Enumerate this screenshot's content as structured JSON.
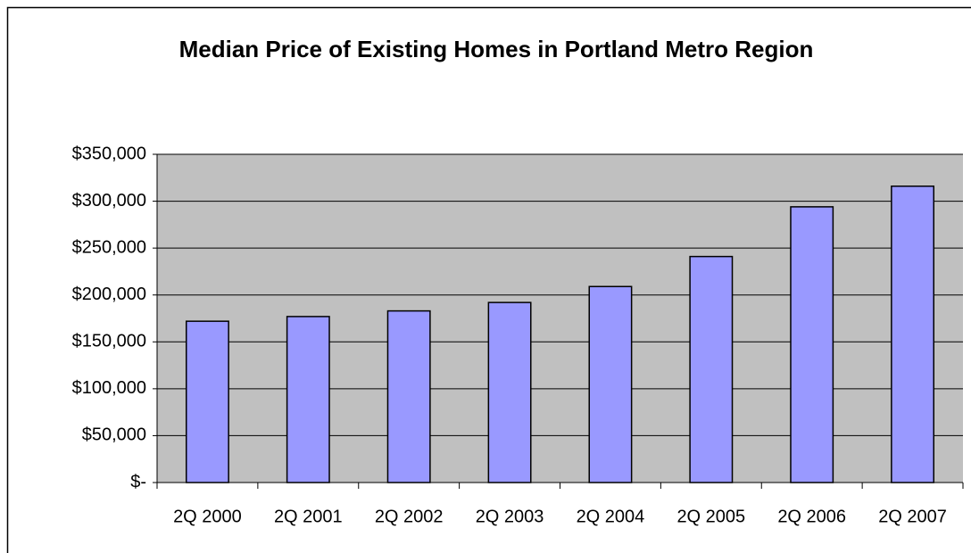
{
  "chart_data": {
    "type": "bar",
    "title": "Median Price of Existing Homes in Portland Metro Region",
    "categories": [
      "2Q 2000",
      "2Q 2001",
      "2Q 2002",
      "2Q 2003",
      "2Q 2004",
      "2Q 2005",
      "2Q 2006",
      "2Q 2007"
    ],
    "values": [
      172000,
      177000,
      183000,
      192000,
      209000,
      241000,
      294000,
      316000
    ],
    "color": "#9999ff",
    "ylim": [
      0,
      350000
    ],
    "yticks": [
      {
        "value": 0,
        "label": "$-"
      },
      {
        "value": 50000,
        "label": "$50,000"
      },
      {
        "value": 100000,
        "label": "$100,000"
      },
      {
        "value": 150000,
        "label": "$150,000"
      },
      {
        "value": 200000,
        "label": "$200,000"
      },
      {
        "value": 250000,
        "label": "$250,000"
      },
      {
        "value": 300000,
        "label": "$300,000"
      },
      {
        "value": 350000,
        "label": "$350,000"
      }
    ],
    "grid": true
  }
}
